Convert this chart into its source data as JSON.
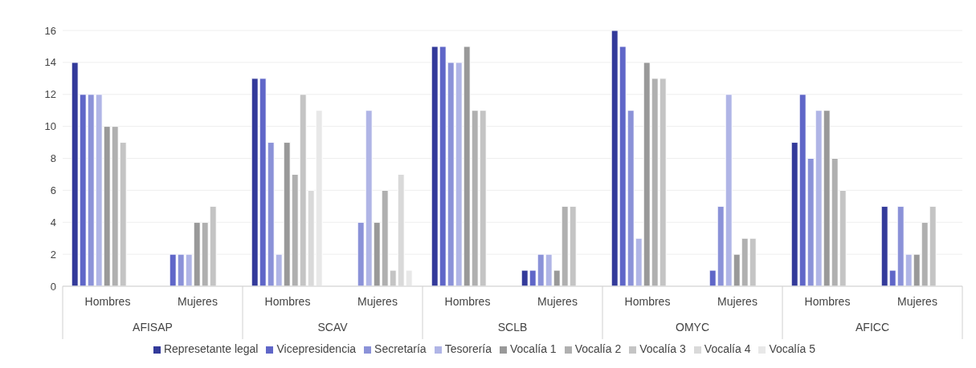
{
  "chart_data": {
    "type": "bar",
    "categories": [
      "Hombres",
      "Mujeres",
      "Hombres",
      "Mujeres",
      "Hombres",
      "Mujeres",
      "Hombres",
      "Mujeres",
      "Hombres",
      "Mujeres"
    ],
    "annotations": [
      "AFISAP",
      "SCAV",
      "SCLB",
      "OMYC",
      "AFICC"
    ],
    "series": [
      {
        "name": "Represetante legal",
        "color": "#333a9a",
        "values": [
          14,
          null,
          13,
          null,
          15,
          1,
          16,
          null,
          9,
          5
        ]
      },
      {
        "name": "Vicepresidencia",
        "color": "#5f66c8",
        "values": [
          12,
          2,
          13,
          null,
          15,
          1,
          15,
          1,
          12,
          1
        ]
      },
      {
        "name": "Secretaría",
        "color": "#8b92d8",
        "values": [
          12,
          2,
          9,
          4,
          14,
          2,
          11,
          5,
          8,
          5
        ]
      },
      {
        "name": "Tesorería",
        "color": "#b0b5e6",
        "values": [
          12,
          2,
          2,
          11,
          14,
          2,
          3,
          12,
          11,
          2
        ]
      },
      {
        "name": "Vocalía 1",
        "color": "#999999",
        "values": [
          10,
          4,
          9,
          4,
          15,
          1,
          14,
          2,
          11,
          2
        ]
      },
      {
        "name": "Vocalía 2",
        "color": "#b0b0b0",
        "values": [
          10,
          4,
          7,
          6,
          11,
          5,
          13,
          3,
          8,
          4
        ]
      },
      {
        "name": "Vocalía 3",
        "color": "#c4c4c4",
        "values": [
          9,
          5,
          12,
          1,
          11,
          5,
          13,
          3,
          6,
          5
        ]
      },
      {
        "name": "Vocalía 4",
        "color": "#d9d9d9",
        "values": [
          null,
          null,
          6,
          7,
          null,
          null,
          null,
          null,
          null,
          null
        ]
      },
      {
        "name": "Vocalía 5",
        "color": "#e8e8e8",
        "values": [
          null,
          null,
          11,
          1,
          null,
          null,
          null,
          null,
          null,
          null
        ]
      }
    ],
    "ylim": [
      0,
      16
    ],
    "yticks": [
      0,
      2,
      4,
      6,
      8,
      10,
      12,
      14,
      16
    ],
    "grid": "y",
    "legend": "bottom"
  }
}
